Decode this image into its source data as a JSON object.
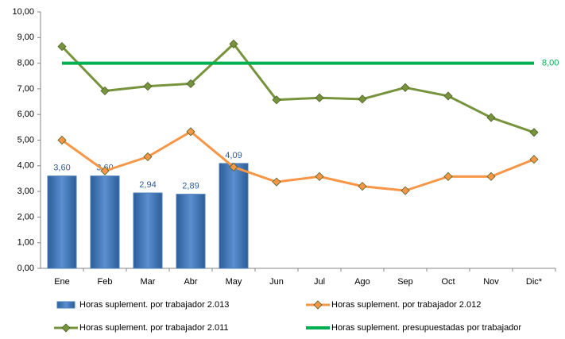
{
  "chart_data": {
    "type": "bar",
    "categories": [
      "Ene",
      "Feb",
      "Mar",
      "Abr",
      "May",
      "Jun",
      "Jul",
      "Ago",
      "Sep",
      "Oct",
      "Nov",
      "Dic*"
    ],
    "ylim": [
      0,
      10
    ],
    "yticks": [
      {
        "value": 0,
        "label": "0,00"
      },
      {
        "value": 1,
        "label": "1,00"
      },
      {
        "value": 2,
        "label": "2,00"
      },
      {
        "value": 3,
        "label": "3,00"
      },
      {
        "value": 4,
        "label": "4,00"
      },
      {
        "value": 5,
        "label": "5,00"
      },
      {
        "value": 6,
        "label": "6,00"
      },
      {
        "value": 7,
        "label": "7,00"
      },
      {
        "value": 8,
        "label": "8,00"
      },
      {
        "value": 9,
        "label": "9,00"
      },
      {
        "value": 10,
        "label": "10,00"
      }
    ],
    "grid": false,
    "series": [
      {
        "name": "Horas suplement. por trabajador 2.013",
        "type": "bar",
        "color": "#4a7ebb",
        "values": [
          3.6,
          3.6,
          2.94,
          2.89,
          4.09,
          null,
          null,
          null,
          null,
          null,
          null,
          null
        ],
        "value_labels": [
          "3,60",
          "3,60",
          "2,94",
          "2,89",
          "4,09",
          null,
          null,
          null,
          null,
          null,
          null,
          null
        ]
      },
      {
        "name": "Horas suplement. por trabajador 2.012",
        "type": "line",
        "color": "#f79646",
        "values": [
          5.0,
          3.8,
          4.35,
          5.33,
          3.95,
          3.37,
          3.58,
          3.2,
          3.03,
          3.58,
          3.58,
          4.25
        ]
      },
      {
        "name": "Horas suplement. por trabajador 2.011",
        "type": "line",
        "color": "#77933c",
        "values": [
          8.65,
          6.92,
          7.1,
          7.2,
          8.75,
          6.57,
          6.65,
          6.6,
          7.05,
          6.72,
          5.88,
          5.3
        ]
      },
      {
        "name": "Horas suplement. presupuestadas por trabajador",
        "type": "line",
        "color": "#00b050",
        "markers": false,
        "values": [
          8,
          8,
          8,
          8,
          8,
          8,
          8,
          8,
          8,
          8,
          8,
          8
        ],
        "value_labels": [
          null,
          null,
          null,
          null,
          null,
          null,
          null,
          null,
          null,
          null,
          null,
          "8,00"
        ]
      }
    ]
  }
}
